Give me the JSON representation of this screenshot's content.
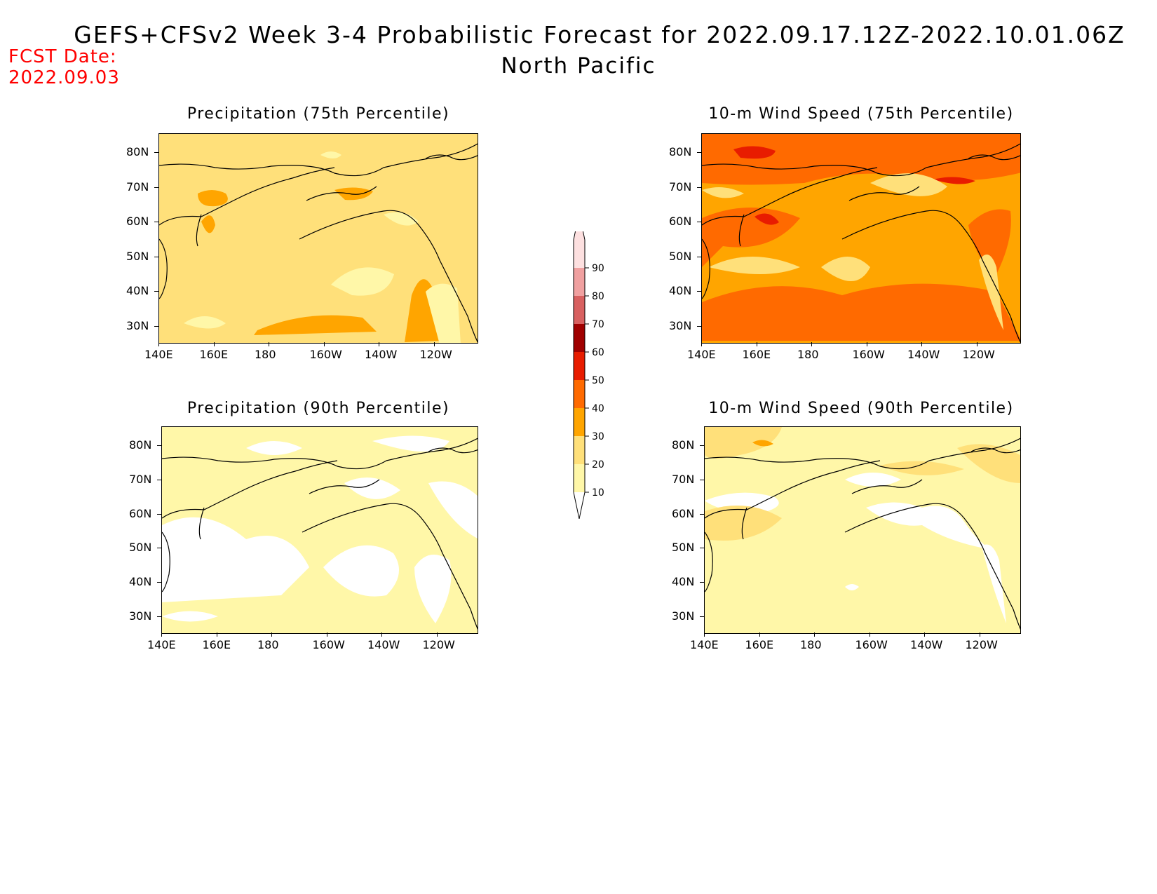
{
  "header": {
    "title": "GEFS+CFSv2 Week 3-4 Probabilistic Forecast for 2022.09.17.12Z-2022.10.01.06Z",
    "subtitle": "North Pacific",
    "fcst_label": "FCST Date:",
    "fcst_value": "2022.09.03"
  },
  "axes": {
    "lon_labels": [
      "140E",
      "160E",
      "180",
      "160W",
      "140W",
      "120W"
    ],
    "lat_labels": [
      "80N",
      "70N",
      "60N",
      "50N",
      "40N",
      "30N"
    ]
  },
  "panels": [
    {
      "id": "precip-75",
      "title": "Precipitation (75th Percentile)",
      "base_level": 20
    },
    {
      "id": "wind-75",
      "title": "10-m Wind Speed (75th Percentile)",
      "base_level": 30
    },
    {
      "id": "precip-90",
      "title": "Precipitation (90th Percentile)",
      "base_level": 10
    },
    {
      "id": "wind-90",
      "title": "10-m Wind Speed (90th Percentile)",
      "base_level": 10
    }
  ],
  "colorbar": {
    "levels": [
      10,
      20,
      30,
      40,
      50,
      60,
      70,
      80,
      90
    ],
    "colors": [
      "#fff7a8",
      "#ffe07a",
      "#ffa500",
      "#ff6a00",
      "#e81c00",
      "#a00000",
      "#d86060",
      "#f0a0a0",
      "#fde0e0"
    ],
    "labels": [
      "10",
      "20",
      "30",
      "40",
      "50",
      "60",
      "70",
      "80",
      "90"
    ]
  }
}
